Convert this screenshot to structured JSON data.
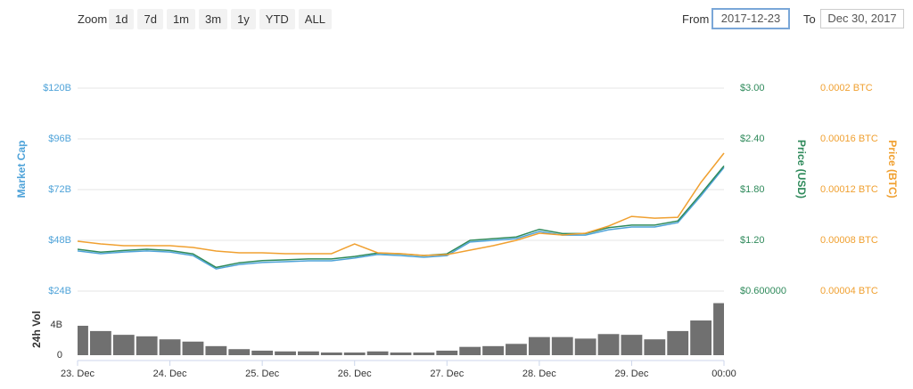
{
  "controls": {
    "zoom_label": "Zoom",
    "zoom_buttons": [
      "1d",
      "7d",
      "1m",
      "3m",
      "1y",
      "YTD",
      "ALL"
    ],
    "from_label": "From",
    "from_value": "2017-12-23",
    "to_label": "To",
    "to_value": "Dec 30, 2017"
  },
  "chart_data": [
    {
      "type": "line",
      "x": [
        23,
        23.25,
        23.5,
        23.75,
        24,
        24.25,
        24.5,
        24.75,
        25,
        25.25,
        25.5,
        25.75,
        26,
        26.25,
        26.5,
        26.75,
        27,
        27.25,
        27.5,
        27.75,
        28,
        28.25,
        28.5,
        28.75,
        29,
        29.25,
        29.5,
        29.75,
        30
      ],
      "xlim": [
        23,
        30
      ],
      "ylabel": "Market Cap",
      "y2label": "Price (USD)",
      "y3label": "Price (BTC)",
      "ylim": [
        24000000000,
        120000000000
      ],
      "yticks": [
        {
          "value": 24000000000,
          "label": "$24B"
        },
        {
          "value": 48000000000,
          "label": "$48B"
        },
        {
          "value": 72000000000,
          "label": "$72B"
        },
        {
          "value": 96000000000,
          "label": "$96B"
        },
        {
          "value": 120000000000,
          "label": "$120B"
        }
      ],
      "y2lim": [
        0.6,
        3
      ],
      "y2ticks": [
        {
          "value": 0.6,
          "label": "$0.600000"
        },
        {
          "value": 1.2,
          "label": "$1.20"
        },
        {
          "value": 1.8,
          "label": "$1.80"
        },
        {
          "value": 2.4,
          "label": "$2.40"
        },
        {
          "value": 3,
          "label": "$3.00"
        }
      ],
      "y3lim": [
        4e-05,
        0.0002
      ],
      "y3ticks": [
        {
          "value": 4e-05,
          "label": "0.00004 BTC"
        },
        {
          "value": 8e-05,
          "label": "0.00008 BTC"
        },
        {
          "value": 0.00012,
          "label": "0.00012 BTC"
        },
        {
          "value": 0.00016,
          "label": "0.00016 BTC"
        },
        {
          "value": 0.0002,
          "label": "0.0002 BTC"
        }
      ],
      "grid": true,
      "series": [
        {
          "name": "Market Cap",
          "color": "#4fa3d9",
          "axis": "y",
          "values": [
            43000000000,
            41700000000,
            42500000000,
            43000000000,
            42500000000,
            40800000000,
            34500000000,
            36600000000,
            37500000000,
            37900000000,
            38300000000,
            38300000000,
            39600000000,
            41300000000,
            40800000000,
            40000000000,
            40800000000,
            47200000000,
            48000000000,
            48800000000,
            52200000000,
            50500000000,
            50500000000,
            53000000000,
            54300000000,
            54300000000,
            56400000000,
            69000000000,
            82500000000
          ]
        },
        {
          "name": "Price (USD)",
          "color": "#2f8a5b",
          "axis": "y2",
          "values": [
            1.095,
            1.06,
            1.08,
            1.095,
            1.08,
            1.04,
            0.88,
            0.935,
            0.96,
            0.97,
            0.98,
            0.98,
            1.01,
            1.05,
            1.04,
            1.02,
            1.04,
            1.2,
            1.22,
            1.24,
            1.33,
            1.28,
            1.28,
            1.35,
            1.38,
            1.38,
            1.43,
            1.75,
            2.08
          ]
        },
        {
          "name": "Price (BTC)",
          "color": "#f0a030",
          "axis": "y3",
          "values": [
            7.93e-05,
            7.72e-05,
            7.58e-05,
            7.58e-05,
            7.58e-05,
            7.44e-05,
            7.16e-05,
            7.02e-05,
            7.02e-05,
            6.95e-05,
            6.95e-05,
            6.95e-05,
            7.72e-05,
            7.02e-05,
            6.95e-05,
            6.81e-05,
            6.88e-05,
            7.23e-05,
            7.58e-05,
            8e-05,
            8.56e-05,
            8.42e-05,
            8.56e-05,
            9.12e-05,
            9.89e-05,
            9.75e-05,
            9.82e-05,
            0.0001256,
            0.0001488
          ]
        }
      ]
    },
    {
      "type": "bar",
      "ylabel": "24h Vol",
      "x": [
        23,
        23.25,
        23.5,
        23.75,
        24,
        24.25,
        24.5,
        24.75,
        25,
        25.25,
        25.5,
        25.75,
        26,
        26.25,
        26.5,
        26.75,
        27,
        27.25,
        27.5,
        27.75,
        28,
        28.25,
        28.5,
        28.75,
        29,
        29.25,
        29.5,
        29.75,
        30
      ],
      "xlim": [
        23,
        30
      ],
      "xticks": [
        {
          "value": 23,
          "label": "23. Dec"
        },
        {
          "value": 24,
          "label": "24. Dec"
        },
        {
          "value": 25,
          "label": "25. Dec"
        },
        {
          "value": 26,
          "label": "26. Dec"
        },
        {
          "value": 27,
          "label": "27. Dec"
        },
        {
          "value": 28,
          "label": "28. Dec"
        },
        {
          "value": 29,
          "label": "29. Dec"
        },
        {
          "value": 30,
          "label": "00:00"
        }
      ],
      "ylim": [
        0,
        7200000000
      ],
      "yticks": [
        0,
        {
          "value": 4000000000,
          "label": "4B"
        }
      ],
      "color": "#707070",
      "values": [
        3900000000,
        3200000000,
        2700000000,
        2500000000,
        2100000000,
        1800000000,
        1200000000,
        800000000,
        600000000,
        500000000,
        500000000,
        350000000,
        350000000,
        500000000,
        350000000,
        350000000,
        600000000,
        1100000000,
        1200000000,
        1500000000,
        2400000000,
        2400000000,
        2200000000,
        2800000000,
        2700000000,
        2100000000,
        3200000000,
        4600000000,
        6900000000
      ]
    }
  ]
}
